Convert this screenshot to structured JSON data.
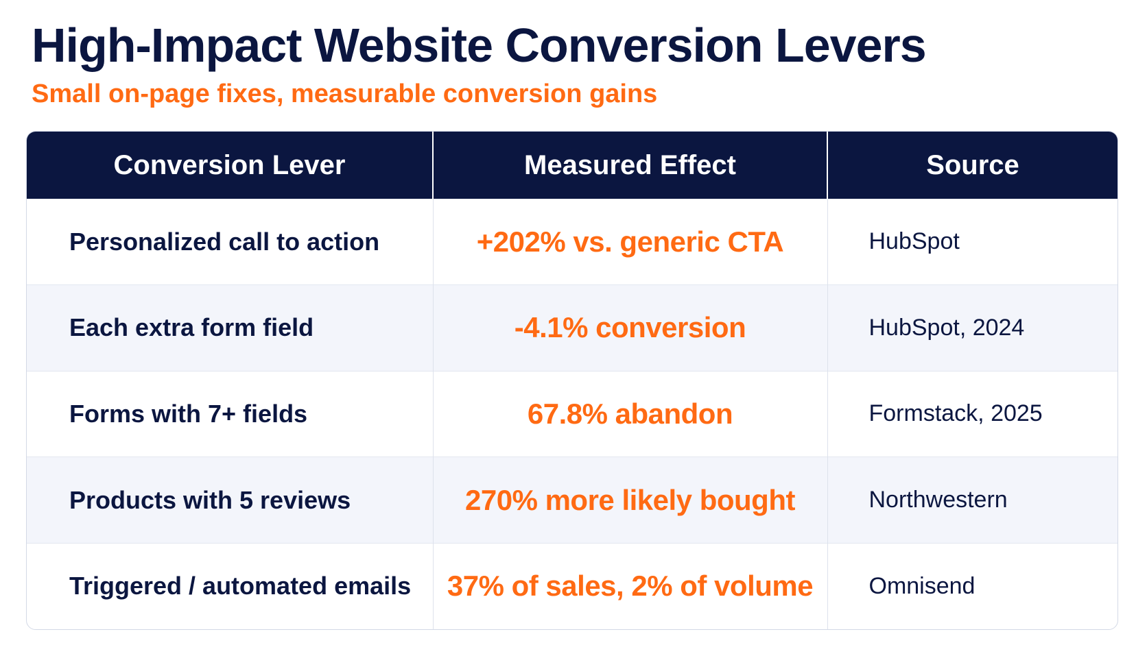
{
  "header": {
    "title": "High-Impact Website Conversion Levers",
    "subtitle": "Small on-page fixes, measurable conversion gains"
  },
  "colors": {
    "navy": "#0b1640",
    "accent_orange": "#ff6a13",
    "alt_row": "#f3f5fb"
  },
  "table": {
    "columns": [
      "Conversion Lever",
      "Measured Effect",
      "Source"
    ],
    "rows": [
      {
        "lever": "Personalized call to action",
        "effect": "+202% vs. generic CTA",
        "source": "HubSpot"
      },
      {
        "lever": "Each extra form field",
        "effect": "-4.1% conversion",
        "source": "HubSpot, 2024"
      },
      {
        "lever": "Forms with 7+ fields",
        "effect": "67.8% abandon",
        "source": "Formstack, 2025"
      },
      {
        "lever": "Products with 5 reviews",
        "effect": "270% more likely bought",
        "source": "Northwestern"
      },
      {
        "lever": "Triggered / automated emails",
        "effect": "37% of sales, 2% of volume",
        "source": "Omnisend"
      }
    ]
  }
}
